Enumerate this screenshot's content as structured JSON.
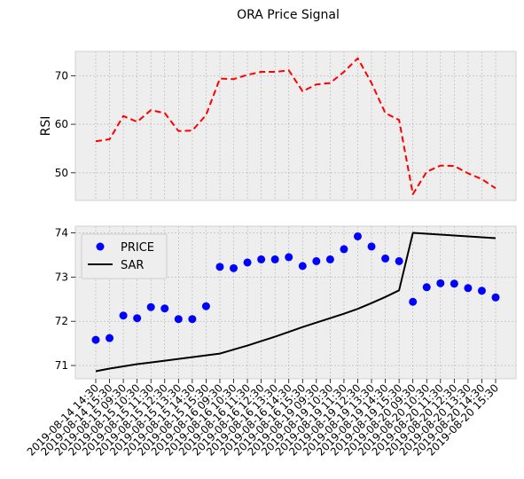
{
  "chart_data": {
    "type": "line",
    "title": "ORA Price Signal",
    "x": [
      "2019-08-14 14:30",
      "2019-08-14 15:30",
      "2019-08-15 09:30",
      "2019-08-15 10:30",
      "2019-08-15 11:30",
      "2019-08-15 12:30",
      "2019-08-15 13:30",
      "2019-08-15 14:30",
      "2019-08-15 15:30",
      "2019-08-16 09:30",
      "2019-08-16 10:30",
      "2019-08-16 11:30",
      "2019-08-16 12:30",
      "2019-08-16 13:30",
      "2019-08-16 14:30",
      "2019-08-16 15:30",
      "2019-08-19 09:30",
      "2019-08-19 10:30",
      "2019-08-19 11:30",
      "2019-08-19 12:30",
      "2019-08-19 13:30",
      "2019-08-19 14:30",
      "2019-08-19 15:30",
      "2019-08-20 09:30",
      "2019-08-20 10:30",
      "2019-08-20 11:30",
      "2019-08-20 12:30",
      "2019-08-20 13:30",
      "2019-08-20 14:30",
      "2019-08-20 15:30"
    ],
    "panels": [
      {
        "ylabel": "RSI",
        "ylim": [
          44.3,
          75.0
        ],
        "yticks": [
          50,
          60,
          70
        ],
        "grid": true,
        "series": [
          {
            "values": [
              56.5,
              56.9,
              61.7,
              60.5,
              62.9,
              62.3,
              58.6,
              58.7,
              61.9,
              69.4,
              69.3,
              70.2,
              70.8,
              70.8,
              71.1,
              66.8,
              68.2,
              68.5,
              70.8,
              73.6,
              68.5,
              62.3,
              60.9,
              45.6,
              50.2,
              51.5,
              51.4,
              49.9,
              48.7,
              46.8
            ],
            "color": "#ff0000",
            "style": "dashed"
          }
        ]
      },
      {
        "ylabel": "",
        "ylim": [
          70.7,
          74.15
        ],
        "yticks": [
          71,
          72,
          73,
          74
        ],
        "grid": true,
        "legend": "top-left",
        "series": [
          {
            "name": "PRICE",
            "kind": "scatter",
            "color": "#0000ff",
            "values": [
              71.58,
              71.62,
              72.13,
              72.07,
              72.32,
              72.29,
              72.05,
              72.05,
              72.34,
              73.23,
              73.2,
              73.33,
              73.4,
              73.4,
              73.45,
              73.25,
              73.36,
              73.4,
              73.63,
              73.92,
              73.69,
              73.42,
              73.36,
              72.44,
              72.77,
              72.86,
              72.85,
              72.75,
              72.69,
              72.54
            ]
          },
          {
            "name": "SAR",
            "kind": "line",
            "color": "#000000",
            "values": [
              70.87,
              70.93,
              70.98,
              71.03,
              71.07,
              71.11,
              71.15,
              71.19,
              71.23,
              71.27,
              71.36,
              71.45,
              71.55,
              71.65,
              71.76,
              71.87,
              71.97,
              72.07,
              72.17,
              72.28,
              72.41,
              72.55,
              72.7,
              74.0,
              73.98,
              73.96,
              73.94,
              73.92,
              73.9,
              73.88
            ]
          }
        ]
      }
    ]
  }
}
